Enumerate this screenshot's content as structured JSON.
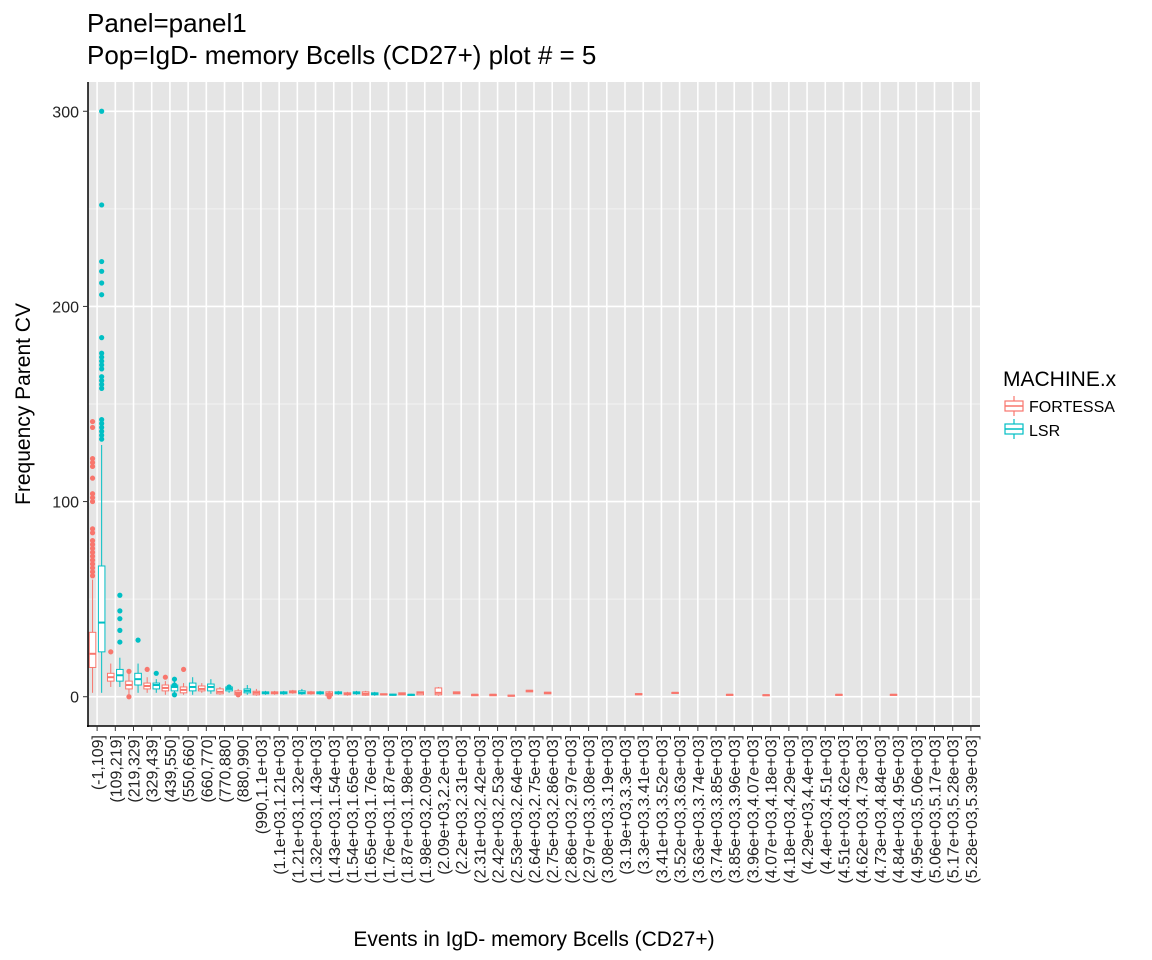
{
  "chart_data": {
    "type": "box",
    "title_line1": "Panel=panel1",
    "title_line2": "Pop=IgD- memory Bcells (CD27+) plot # = 5",
    "xlabel": "Events in IgD- memory Bcells (CD27+)",
    "ylabel": "Frequency Parent CV",
    "ylim": [
      -15,
      315
    ],
    "yticks": [
      0,
      100,
      200,
      300
    ],
    "grid": true,
    "legend": {
      "title": "MACHINE.x",
      "position": "right",
      "entries": [
        {
          "name": "FORTESSA",
          "color": "#F8766D"
        },
        {
          "name": "LSR",
          "color": "#00BFC4"
        }
      ]
    },
    "categories": [
      "(-1,109]",
      "(109,219]",
      "(219,329]",
      "(329,439]",
      "(439,550]",
      "(550,660]",
      "(660,770]",
      "(770,880]",
      "(880,990]",
      "(990,1.1e+03]",
      "(1.1e+03,1.21e+03]",
      "(1.21e+03,1.32e+03]",
      "(1.32e+03,1.43e+03]",
      "(1.43e+03,1.54e+03]",
      "(1.54e+03,1.65e+03]",
      "(1.65e+03,1.76e+03]",
      "(1.76e+03,1.87e+03]",
      "(1.87e+03,1.98e+03]",
      "(1.98e+03,2.09e+03]",
      "(2.09e+03,2.2e+03]",
      "(2.2e+03,2.31e+03]",
      "(2.31e+03,2.42e+03]",
      "(2.42e+03,2.53e+03]",
      "(2.53e+03,2.64e+03]",
      "(2.64e+03,2.75e+03]",
      "(2.75e+03,2.86e+03]",
      "(2.86e+03,2.97e+03]",
      "(2.97e+03,3.08e+03]",
      "(3.08e+03,3.19e+03]",
      "(3.19e+03,3.3e+03]",
      "(3.3e+03,3.41e+03]",
      "(3.41e+03,3.52e+03]",
      "(3.52e+03,3.63e+03]",
      "(3.63e+03,3.74e+03]",
      "(3.74e+03,3.85e+03]",
      "(3.85e+03,3.96e+03]",
      "(3.96e+03,4.07e+03]",
      "(4.07e+03,4.18e+03]",
      "(4.18e+03,4.29e+03]",
      "(4.29e+03,4.4e+03]",
      "(4.4e+03,4.51e+03]",
      "(4.51e+03,4.62e+03]",
      "(4.62e+03,4.73e+03]",
      "(4.73e+03,4.84e+03]",
      "(4.84e+03,4.95e+03]",
      "(4.95e+03,5.06e+03]",
      "(5.06e+03,5.17e+03]",
      "(5.17e+03,5.28e+03]",
      "(5.28e+03,5.39e+03]"
    ],
    "series": [
      {
        "name": "FORTESSA",
        "color": "#F8766D",
        "boxes": [
          {
            "cat": 0,
            "q1": 15,
            "median": 22,
            "q3": 33,
            "wlow": 2,
            "whigh": 60,
            "outliers": [
              62,
              64,
              66,
              68,
              70,
              72,
              74,
              76,
              78,
              80,
              84,
              86,
              100,
              102,
              104,
              112,
              118,
              120,
              122,
              138,
              141
            ]
          },
          {
            "cat": 1,
            "q1": 8,
            "median": 10,
            "q3": 12,
            "wlow": 5,
            "whigh": 17,
            "outliers": [
              23
            ]
          },
          {
            "cat": 2,
            "q1": 4,
            "median": 6,
            "q3": 8,
            "wlow": 1,
            "whigh": 12,
            "outliers": [
              0,
              13
            ]
          },
          {
            "cat": 3,
            "q1": 4,
            "median": 5.5,
            "q3": 7,
            "wlow": 2,
            "whigh": 10,
            "outliers": [
              14
            ]
          },
          {
            "cat": 4,
            "q1": 3,
            "median": 4.5,
            "q3": 6,
            "wlow": 1,
            "whigh": 8,
            "outliers": [
              10
            ]
          },
          {
            "cat": 5,
            "q1": 2,
            "median": 3.5,
            "q3": 5,
            "wlow": 1,
            "whigh": 7,
            "outliers": [
              14
            ]
          },
          {
            "cat": 6,
            "q1": 3,
            "median": 4,
            "q3": 5.5,
            "wlow": 2,
            "whigh": 7,
            "outliers": []
          },
          {
            "cat": 7,
            "q1": 1.5,
            "median": 2.5,
            "q3": 4,
            "wlow": 1,
            "whigh": 5,
            "outliers": []
          },
          {
            "cat": 8,
            "q1": 1,
            "median": 2,
            "q3": 3,
            "wlow": 0.5,
            "whigh": 4,
            "outliers": [
              1
            ]
          },
          {
            "cat": 9,
            "q1": 1,
            "median": 2,
            "q3": 2.8,
            "wlow": 0.5,
            "whigh": 4,
            "outliers": []
          },
          {
            "cat": 10,
            "q1": 1.5,
            "median": 2,
            "q3": 2.5,
            "wlow": 1,
            "whigh": 3,
            "outliers": []
          },
          {
            "cat": 11,
            "q1": 2,
            "median": 2.5,
            "q3": 3,
            "wlow": 1.5,
            "whigh": 3.5,
            "outliers": []
          },
          {
            "cat": 12,
            "q1": 1.5,
            "median": 2,
            "q3": 2.5,
            "wlow": 1,
            "whigh": 3,
            "outliers": []
          },
          {
            "cat": 13,
            "q1": 0.5,
            "median": 1.5,
            "q3": 2.5,
            "wlow": 0,
            "whigh": 3,
            "outliers": [
              0,
              1
            ]
          },
          {
            "cat": 14,
            "q1": 1,
            "median": 1.5,
            "q3": 2,
            "wlow": 0.5,
            "whigh": 2.5,
            "outliers": []
          },
          {
            "cat": 15,
            "q1": 0.8,
            "median": 1.5,
            "q3": 2.5,
            "wlow": 0.5,
            "whigh": 3,
            "outliers": []
          },
          {
            "cat": 16,
            "q1": 1,
            "median": 1.2,
            "q3": 1.5,
            "wlow": 1,
            "whigh": 1.5,
            "outliers": []
          },
          {
            "cat": 17,
            "q1": 1,
            "median": 1.5,
            "q3": 2,
            "wlow": 1,
            "whigh": 2,
            "outliers": []
          },
          {
            "cat": 18,
            "q1": 1,
            "median": 2,
            "q3": 2.5,
            "wlow": 1,
            "whigh": 2.5,
            "outliers": []
          },
          {
            "cat": 19,
            "q1": 1,
            "median": 2,
            "q3": 4.5,
            "wlow": 0.5,
            "whigh": 5,
            "outliers": []
          },
          {
            "cat": 20,
            "q1": 1.5,
            "median": 2,
            "q3": 2.5,
            "wlow": 1.5,
            "whigh": 2.5,
            "outliers": []
          },
          {
            "cat": 21,
            "q1": 0.5,
            "median": 1,
            "q3": 1.2,
            "wlow": 0.5,
            "whigh": 1.2,
            "outliers": []
          },
          {
            "cat": 22,
            "q1": 0.5,
            "median": 1,
            "q3": 1.2,
            "wlow": 0.5,
            "whigh": 1.2,
            "outliers": []
          },
          {
            "cat": 23,
            "q1": 0.3,
            "median": 0.5,
            "q3": 0.8,
            "wlow": 0.3,
            "whigh": 0.8,
            "outliers": []
          },
          {
            "cat": 24,
            "q1": 2.5,
            "median": 3,
            "q3": 3.3,
            "wlow": 2.5,
            "whigh": 3.3,
            "outliers": []
          },
          {
            "cat": 25,
            "q1": 1.5,
            "median": 2,
            "q3": 2.3,
            "wlow": 1.5,
            "whigh": 2.3,
            "outliers": []
          },
          {
            "cat": 30,
            "q1": 1,
            "median": 1.3,
            "q3": 1.6,
            "wlow": 1,
            "whigh": 1.6,
            "outliers": []
          },
          {
            "cat": 32,
            "q1": 1.8,
            "median": 2,
            "q3": 2.2,
            "wlow": 1.8,
            "whigh": 2.2,
            "outliers": []
          },
          {
            "cat": 35,
            "q1": 0.7,
            "median": 1,
            "q3": 1.2,
            "wlow": 0.7,
            "whigh": 1.2,
            "outliers": []
          },
          {
            "cat": 37,
            "q1": 0.5,
            "median": 0.8,
            "q3": 1,
            "wlow": 0.5,
            "whigh": 1,
            "outliers": []
          },
          {
            "cat": 41,
            "q1": 0.7,
            "median": 1,
            "q3": 1.2,
            "wlow": 0.7,
            "whigh": 1.2,
            "outliers": []
          },
          {
            "cat": 44,
            "q1": 0.7,
            "median": 1,
            "q3": 1.2,
            "wlow": 0.7,
            "whigh": 1.2,
            "outliers": []
          }
        ]
      },
      {
        "name": "LSR",
        "color": "#00BFC4",
        "boxes": [
          {
            "cat": 0,
            "q1": 23,
            "median": 38,
            "q3": 67,
            "wlow": 2,
            "whigh": 129,
            "outliers": [
              132,
              134,
              136,
              138,
              140,
              142,
              158,
              160,
              162,
              164,
              168,
              170,
              172,
              174,
              176,
              184,
              206,
              212,
              218,
              223,
              252,
              300
            ]
          },
          {
            "cat": 1,
            "q1": 8,
            "median": 11,
            "q3": 14,
            "wlow": 5,
            "whigh": 20,
            "outliers": [
              28,
              34,
              40,
              44,
              52
            ]
          },
          {
            "cat": 2,
            "q1": 6,
            "median": 9,
            "q3": 12,
            "wlow": 2,
            "whigh": 17,
            "outliers": [
              29
            ]
          },
          {
            "cat": 3,
            "q1": 4,
            "median": 6,
            "q3": 7,
            "wlow": 2,
            "whigh": 9,
            "outliers": [
              12
            ]
          },
          {
            "cat": 4,
            "q1": 3,
            "median": 5,
            "q3": 6,
            "wlow": 2,
            "whigh": 8,
            "outliers": [
              1,
              6,
              9
            ]
          },
          {
            "cat": 5,
            "q1": 3,
            "median": 5,
            "q3": 7,
            "wlow": 1,
            "whigh": 10,
            "outliers": []
          },
          {
            "cat": 6,
            "q1": 3,
            "median": 5,
            "q3": 6.5,
            "wlow": 1.5,
            "whigh": 9,
            "outliers": []
          },
          {
            "cat": 7,
            "q1": 3,
            "median": 4,
            "q3": 5,
            "wlow": 2,
            "whigh": 6,
            "outliers": [
              5
            ]
          },
          {
            "cat": 8,
            "q1": 2,
            "median": 3,
            "q3": 4,
            "wlow": 1,
            "whigh": 6,
            "outliers": []
          },
          {
            "cat": 9,
            "q1": 1.5,
            "median": 2,
            "q3": 2.5,
            "wlow": 1,
            "whigh": 3,
            "outliers": []
          },
          {
            "cat": 10,
            "q1": 1.5,
            "median": 2,
            "q3": 2.5,
            "wlow": 1,
            "whigh": 3,
            "outliers": []
          },
          {
            "cat": 11,
            "q1": 1.5,
            "median": 2,
            "q3": 3,
            "wlow": 1,
            "whigh": 4,
            "outliers": []
          },
          {
            "cat": 12,
            "q1": 1.5,
            "median": 2,
            "q3": 2.5,
            "wlow": 1,
            "whigh": 3,
            "outliers": []
          },
          {
            "cat": 13,
            "q1": 1.5,
            "median": 2,
            "q3": 2.5,
            "wlow": 1,
            "whigh": 3,
            "outliers": []
          },
          {
            "cat": 14,
            "q1": 1.5,
            "median": 2,
            "q3": 2.5,
            "wlow": 1,
            "whigh": 3,
            "outliers": []
          },
          {
            "cat": 15,
            "q1": 1,
            "median": 1.5,
            "q3": 2,
            "wlow": 0.5,
            "whigh": 2.5,
            "outliers": []
          },
          {
            "cat": 16,
            "q1": 0.8,
            "median": 1,
            "q3": 1.3,
            "wlow": 0.5,
            "whigh": 1.5,
            "outliers": []
          },
          {
            "cat": 17,
            "q1": 0.8,
            "median": 1,
            "q3": 1.2,
            "wlow": 0.5,
            "whigh": 1.5,
            "outliers": []
          }
        ]
      }
    ]
  }
}
